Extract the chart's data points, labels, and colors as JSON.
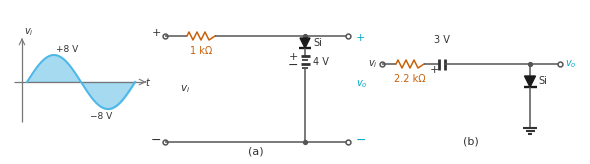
{
  "bg_color": "#ffffff",
  "sine_color": "#4db8e8",
  "sine_fill_color": "#87ceeb",
  "wire_color": "#555555",
  "diode_color": "#1a1a1a",
  "battery_color": "#333333",
  "label_color": "#333333",
  "orange_color": "#c8600a",
  "cyan_color": "#00aacc",
  "label_1kohm": "1 kΩ",
  "label_4v": "4 V",
  "label_3v": "3 V",
  "label_22kohm": "2.2 kΩ",
  "label_si": "Si",
  "label_a": "(a)",
  "label_b": "(b)",
  "label_plus8": "+8 V",
  "label_minus8": "−8 V"
}
